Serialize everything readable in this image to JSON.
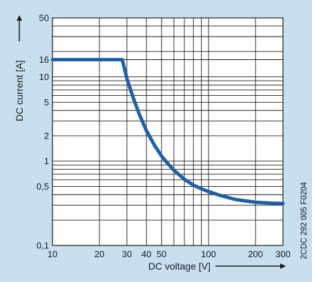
{
  "chart_data": {
    "type": "line",
    "xlabel": "DC voltage [V]",
    "ylabel": "DC current [A]",
    "x_scale": "log",
    "y_scale": "log",
    "xlim": [
      10,
      300
    ],
    "ylim": [
      0.1,
      50
    ],
    "x_ticks": [
      10,
      20,
      30,
      40,
      50,
      100,
      200,
      300
    ],
    "x_tick_labels": [
      "10",
      "20",
      "30",
      "40",
      "50",
      "100",
      "200",
      "300"
    ],
    "y_ticks": [
      0.1,
      0.5,
      1,
      2,
      5,
      10,
      16,
      50
    ],
    "y_tick_labels": [
      "0,1",
      "0,5",
      "1",
      "2",
      "5",
      "10",
      "16",
      "50"
    ],
    "grid": true,
    "series": [
      {
        "color": "#1f5fa6",
        "points": [
          [
            10,
            16
          ],
          [
            28,
            16
          ],
          [
            30,
            9.5
          ],
          [
            33,
            5.6
          ],
          [
            36,
            3.6
          ],
          [
            40,
            2.3
          ],
          [
            45,
            1.55
          ],
          [
            50,
            1.15
          ],
          [
            55,
            0.93
          ],
          [
            60,
            0.78
          ],
          [
            70,
            0.61
          ],
          [
            80,
            0.52
          ],
          [
            90,
            0.47
          ],
          [
            100,
            0.435
          ],
          [
            120,
            0.39
          ],
          [
            150,
            0.35
          ],
          [
            200,
            0.325
          ],
          [
            250,
            0.318
          ],
          [
            300,
            0.315
          ]
        ]
      }
    ]
  },
  "side_label": "2CDC 292 005 F0204"
}
